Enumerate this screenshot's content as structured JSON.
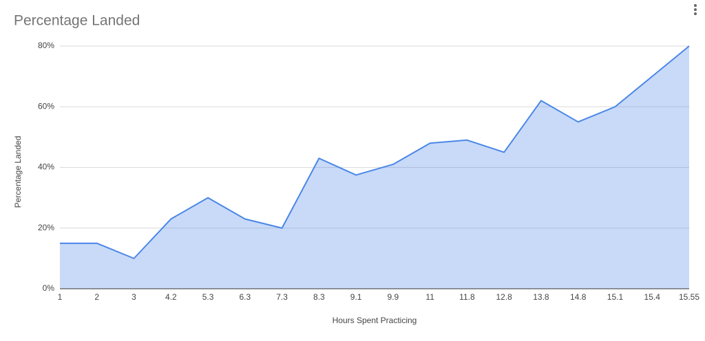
{
  "chart_data": {
    "type": "area",
    "title": "Percentage Landed",
    "x_label": "Hours Spent Practicing",
    "y_label": "Percentage Landed",
    "categories": [
      "1",
      "2",
      "3",
      "4.2",
      "5.3",
      "6.3",
      "7.3",
      "8.3",
      "9.1",
      "9.9",
      "11",
      "11.8",
      "12.8",
      "13.8",
      "14.8",
      "15.1",
      "15.4",
      "15.55"
    ],
    "series": [
      {
        "name": "Percentage Landed",
        "color": "#4a86e8",
        "values": [
          15,
          15,
          10,
          23,
          30,
          23,
          20,
          43,
          37.5,
          41,
          48,
          49,
          45,
          62,
          55,
          60,
          70,
          80
        ]
      }
    ],
    "ylim": [
      0,
      80
    ],
    "yticks": [
      {
        "value": 0,
        "label": "0%"
      },
      {
        "value": 20,
        "label": "20%"
      },
      {
        "value": 40,
        "label": "40%"
      },
      {
        "value": 60,
        "label": "60%"
      },
      {
        "value": 80,
        "label": "80%"
      }
    ],
    "grid": true
  }
}
